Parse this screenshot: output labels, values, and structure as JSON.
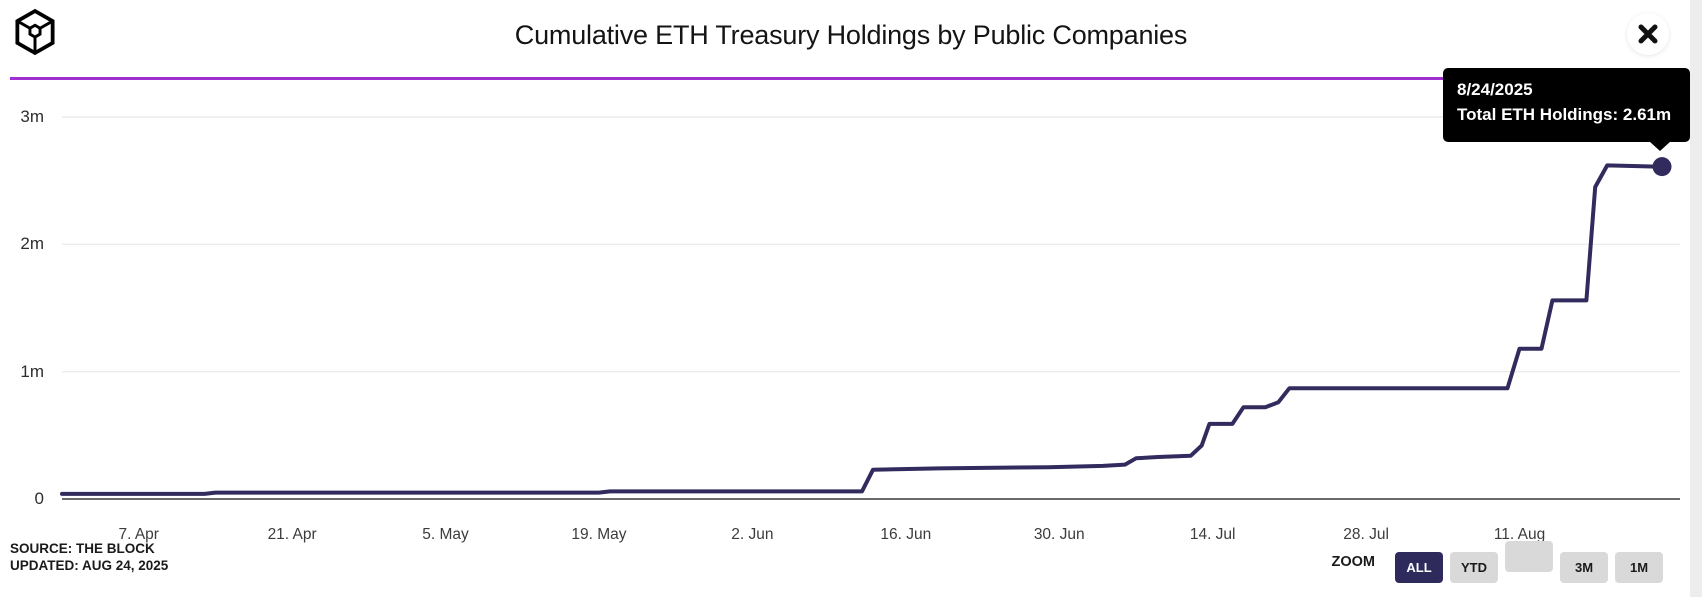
{
  "header": {
    "title": "Cumulative ETH Treasury Holdings by Public Companies",
    "logo_icon": "the-block-cube-logo",
    "close_icon": "close-x"
  },
  "colors": {
    "divider_purple": "#A02FD0",
    "line_navy": "#312B5E",
    "grid_gray": "#ebebeb",
    "axis_gray": "#6b6b6b",
    "tooltip_bg": "#000000",
    "button_active_bg": "#2E2A5C",
    "button_inactive_bg": "#D9D9D9"
  },
  "tooltip": {
    "date": "8/24/2025",
    "value_line": "Total ETH Holdings: 2.61m"
  },
  "footer": {
    "source": "SOURCE: THE BLOCK",
    "updated": "UPDATED: AUG 24, 2025",
    "zoom_label": "ZOOM",
    "zoom_buttons": [
      {
        "label": "ALL",
        "active": true
      },
      {
        "label": "YTD",
        "active": false
      },
      {
        "label": "",
        "active": false
      },
      {
        "label": "3M",
        "active": false
      },
      {
        "label": "1M",
        "active": false
      }
    ]
  },
  "chart_data": {
    "type": "line",
    "title": "Cumulative ETH Treasury Holdings by Public Companies",
    "series_name": "Total ETH Holdings",
    "unit": "millions of ETH",
    "grid": "horizontal-only",
    "legend": "none",
    "x_start_date": "3/31/2025",
    "x_end_date": "8/24/2025",
    "x_range_days": [
      0,
      146
    ],
    "ylim": [
      0,
      3
    ],
    "y_ticks": [
      {
        "v": 0,
        "label": "0"
      },
      {
        "v": 1,
        "label": "1m"
      },
      {
        "v": 2,
        "label": "2m"
      },
      {
        "v": 3,
        "label": "3m"
      }
    ],
    "x_ticks": [
      {
        "day": 7,
        "label": "7. Apr"
      },
      {
        "day": 21,
        "label": "21. Apr"
      },
      {
        "day": 35,
        "label": "5. May"
      },
      {
        "day": 49,
        "label": "19. May"
      },
      {
        "day": 63,
        "label": "2. Jun"
      },
      {
        "day": 77,
        "label": "16. Jun"
      },
      {
        "day": 91,
        "label": "30. Jun"
      },
      {
        "day": 105,
        "label": "14. Jul"
      },
      {
        "day": 119,
        "label": "28. Jul"
      },
      {
        "day": 133,
        "label": "11. Aug"
      }
    ],
    "points_day_value_m": [
      [
        0,
        0.04
      ],
      [
        13,
        0.04
      ],
      [
        14,
        0.05
      ],
      [
        49,
        0.05
      ],
      [
        50,
        0.06
      ],
      [
        73,
        0.06
      ],
      [
        74,
        0.23
      ],
      [
        80,
        0.24
      ],
      [
        90,
        0.25
      ],
      [
        95,
        0.26
      ],
      [
        97,
        0.27
      ],
      [
        98,
        0.32
      ],
      [
        100,
        0.33
      ],
      [
        103,
        0.34
      ],
      [
        104,
        0.42
      ],
      [
        104.7,
        0.59
      ],
      [
        106.8,
        0.59
      ],
      [
        107.8,
        0.72
      ],
      [
        109.8,
        0.72
      ],
      [
        111,
        0.76
      ],
      [
        112,
        0.87
      ],
      [
        131.9,
        0.87
      ],
      [
        133,
        1.18
      ],
      [
        135,
        1.18
      ],
      [
        136,
        1.56
      ],
      [
        139.1,
        1.56
      ],
      [
        139.9,
        2.45
      ],
      [
        141,
        2.62
      ],
      [
        146,
        2.61
      ]
    ],
    "end_point": {
      "date": "8/24/2025",
      "value": 2.61,
      "value_label": "2.61m"
    }
  }
}
